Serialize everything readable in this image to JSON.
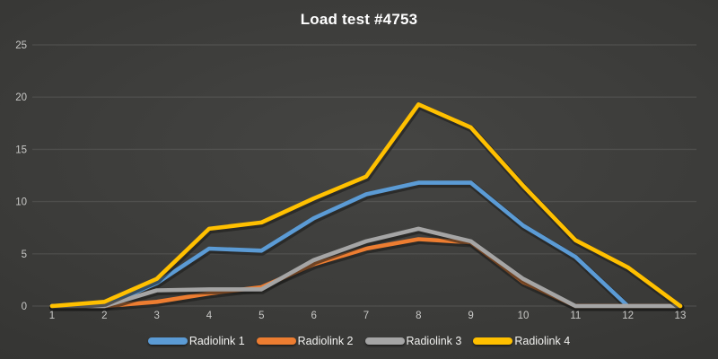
{
  "title": "Load test #4753",
  "chart_data": {
    "type": "line",
    "title": "Load test #4753",
    "xlabel": "",
    "ylabel": "",
    "x": [
      1,
      2,
      3,
      4,
      5,
      6,
      7,
      8,
      9,
      10,
      11,
      12,
      13
    ],
    "y_ticks": [
      0,
      5,
      10,
      15,
      20,
      25
    ],
    "ylim": [
      0,
      25
    ],
    "grid": "horizontal",
    "legend_position": "bottom",
    "background": "#3a3a38",
    "tick_color": "#c8c8c6",
    "title_color": "#ffffff",
    "series": [
      {
        "name": "Radiolink 1",
        "color": "#5B9BD5",
        "values": [
          0,
          0,
          2.2,
          5.5,
          5.3,
          8.4,
          10.7,
          11.8,
          11.8,
          7.7,
          4.7,
          0,
          0
        ]
      },
      {
        "name": "Radiolink 2",
        "color": "#ED7D31",
        "values": [
          0,
          0,
          0.4,
          1.2,
          1.8,
          4.0,
          5.5,
          6.4,
          6.1,
          2.3,
          0,
          0,
          0
        ]
      },
      {
        "name": "Radiolink 3",
        "color": "#A5A5A5",
        "values": [
          0,
          0,
          1.5,
          1.6,
          1.6,
          4.4,
          6.2,
          7.4,
          6.2,
          2.6,
          0,
          0,
          0
        ]
      },
      {
        "name": "Radiolink 4",
        "color": "#FFC000",
        "values": [
          0,
          0.4,
          2.6,
          7.4,
          8.0,
          10.3,
          12.4,
          19.3,
          17.1,
          11.5,
          6.3,
          3.7,
          0
        ]
      }
    ]
  }
}
